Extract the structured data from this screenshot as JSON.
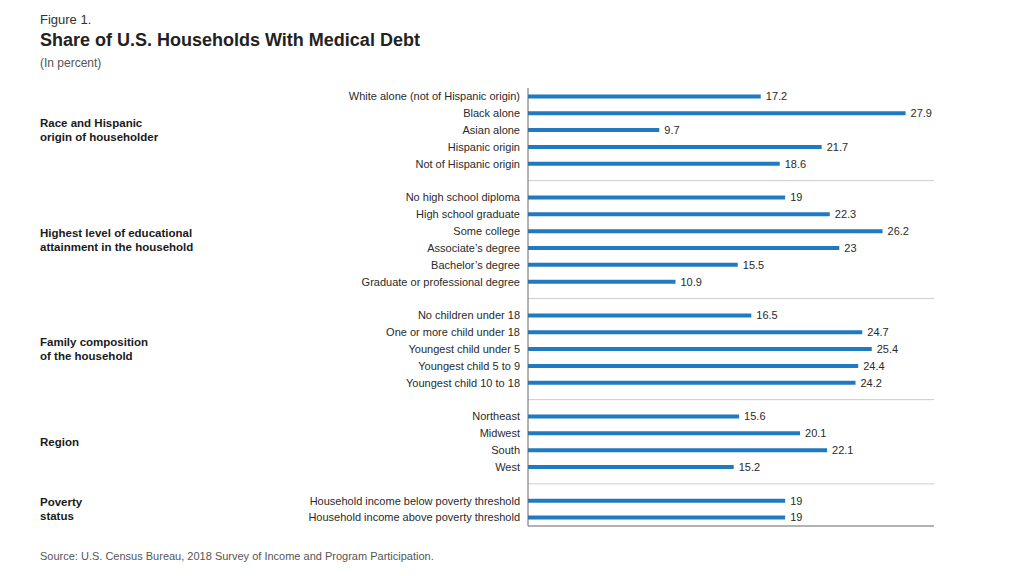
{
  "chart_data": {
    "type": "bar",
    "orientation": "horizontal",
    "figure_label": "Figure 1.",
    "title": "Share of U.S. Households With Medical Debt",
    "subtitle": "(In percent)",
    "source": "Source: U.S. Census Bureau, 2018 Survey of Income and Program Participation.",
    "categories": [
      "White alone (not of Hispanic origin)",
      "Black alone",
      "Asian alone",
      "Hispanic origin",
      "Not of Hispanic origin",
      null,
      "No high school diploma",
      "High school graduate",
      "Some college",
      "Associate’s degree",
      "Bachelor’s degree",
      "Graduate or professional degree",
      null,
      "No children under 18",
      "One or more child under 18",
      "Youngest child under 5",
      "Youngest child 5 to 9",
      "Youngest child 10 to 18",
      null,
      "Northeast",
      "Midwest",
      "South",
      "West",
      null,
      "Household income below poverty threshold",
      "Household income above poverty threshold"
    ],
    "values": [
      17.2,
      27.9,
      9.7,
      21.7,
      18.6,
      null,
      19.0,
      22.3,
      26.2,
      23.0,
      15.5,
      10.9,
      null,
      16.5,
      24.7,
      25.4,
      24.4,
      24.2,
      null,
      15.6,
      20.1,
      22.1,
      15.2,
      null,
      19.0,
      19.0
    ],
    "groups": [
      {
        "text": "Race and Hispanic\norigin of householder",
        "rows": [
          0,
          1,
          2,
          3,
          4
        ]
      },
      {
        "text": "Highest level of educational\nattainment in the household",
        "rows": [
          6,
          7,
          8,
          9,
          10,
          11
        ]
      },
      {
        "text": "Family composition\nof the household",
        "rows": [
          13,
          14,
          15,
          16,
          17
        ]
      },
      {
        "text": "Region",
        "rows": [
          19,
          20,
          21,
          22
        ]
      },
      {
        "text": "Poverty\nstatus",
        "rows": [
          24,
          25
        ]
      }
    ],
    "color": "#1E7BC2",
    "xlim": [
      0,
      30
    ],
    "grid": false,
    "data_labels": true,
    "tick_labels": "y"
  }
}
